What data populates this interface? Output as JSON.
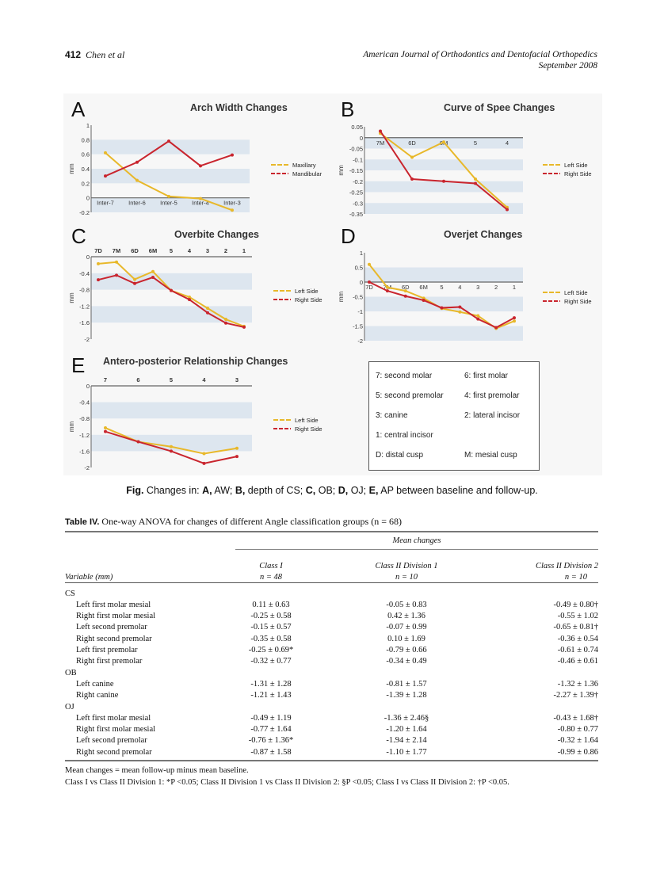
{
  "header": {
    "page_number": "412",
    "authors": "Chen et al",
    "journal": "American Journal of Orthodontics and Dentofacial Orthopedics",
    "date": "September 2008"
  },
  "colors": {
    "left": "#e8b82a",
    "right": "#c9252e",
    "band": "#dde6ef"
  },
  "chart_data": [
    {
      "panel": "A",
      "type": "line",
      "title": "Arch Width Changes",
      "ylabel": "mm",
      "categories": [
        "Inter-7",
        "Inter-6",
        "Inter-5",
        "Inter-4",
        "Inter-3"
      ],
      "ylim": [
        -0.2,
        1
      ],
      "yticks": [
        "1",
        "0.8",
        "0.6",
        "0.4",
        "0.2",
        "0",
        "-0.2"
      ],
      "tick_position": "bottom",
      "legend": "right",
      "series": [
        {
          "name": "Maxillary",
          "values": [
            0.62,
            0.24,
            0.02,
            -0.01,
            -0.17
          ]
        },
        {
          "name": "Mandibular",
          "values": [
            0.3,
            0.49,
            0.78,
            0.44,
            0.59
          ]
        }
      ]
    },
    {
      "panel": "B",
      "type": "line",
      "title": "Curve of Spee Changes",
      "ylabel": "mm",
      "categories": [
        "7M",
        "6D",
        "6M",
        "5",
        "4"
      ],
      "ylim": [
        -0.35,
        0.05
      ],
      "yticks": [
        "0.05",
        "0",
        "-0.05",
        "-0.1",
        "-0.15",
        "-0.2",
        "-0.25",
        "-0.3",
        "-0.35"
      ],
      "tick_position": "bottom",
      "legend": "right",
      "series": [
        {
          "name": "Left Side",
          "values": [
            0.02,
            -0.09,
            -0.02,
            -0.19,
            -0.32
          ]
        },
        {
          "name": "Right Side",
          "values": [
            0.03,
            -0.19,
            -0.2,
            -0.21,
            -0.33
          ]
        }
      ]
    },
    {
      "panel": "C",
      "type": "line",
      "title": "Overbite Changes",
      "ylabel": "mm",
      "categories": [
        "7D",
        "7M",
        "6D",
        "6M",
        "5",
        "4",
        "3",
        "2",
        "1"
      ],
      "ylim": [
        -2,
        0
      ],
      "yticks": [
        "0",
        "-0.4",
        "-0.8",
        "-1.2",
        "-1.6",
        "-2"
      ],
      "tick_position": "top",
      "legend": "right",
      "series": [
        {
          "name": "Left Side",
          "values": [
            -0.17,
            -0.13,
            -0.55,
            -0.36,
            -0.82,
            -0.98,
            -1.25,
            -1.52,
            -1.69
          ]
        },
        {
          "name": "Right Side",
          "values": [
            -0.56,
            -0.45,
            -0.65,
            -0.5,
            -0.82,
            -1.04,
            -1.36,
            -1.61,
            -1.71
          ]
        }
      ]
    },
    {
      "panel": "D",
      "type": "line",
      "title": "Overjet Changes",
      "ylabel": "mm",
      "categories": [
        "7D",
        "7M",
        "6D",
        "6M",
        "5",
        "4",
        "3",
        "2",
        "1"
      ],
      "ylim": [
        -2,
        1
      ],
      "yticks": [
        "1",
        "0.5",
        "0",
        "-0.5",
        "-1",
        "-1.5",
        "-2"
      ],
      "tick_position": "bottom",
      "legend": "right",
      "series": [
        {
          "name": "Left Side",
          "values": [
            0.6,
            -0.18,
            -0.3,
            -0.55,
            -0.9,
            -1.02,
            -1.15,
            -1.58,
            -1.33
          ]
        },
        {
          "name": "Right Side",
          "values": [
            0,
            -0.3,
            -0.48,
            -0.62,
            -0.88,
            -0.85,
            -1.26,
            -1.55,
            -1.22
          ]
        }
      ]
    },
    {
      "panel": "E",
      "type": "line",
      "title": "Antero-posterior Relationship Changes",
      "ylabel": "mm",
      "categories": [
        "7",
        "6",
        "5",
        "4",
        "3"
      ],
      "ylim": [
        -2,
        0
      ],
      "yticks": [
        "0",
        "-0.4",
        "-0.8",
        "-1.2",
        "-1.6",
        "-2"
      ],
      "tick_position": "top",
      "legend": "right",
      "series": [
        {
          "name": "Left Side",
          "values": [
            -1.03,
            -1.37,
            -1.49,
            -1.66,
            -1.53
          ]
        },
        {
          "name": "Right Side",
          "values": [
            -1.12,
            -1.37,
            -1.6,
            -1.9,
            -1.73
          ]
        }
      ]
    }
  ],
  "key": [
    "7: second molar",
    "6: first molar",
    "5: second premolar",
    "4: first premolar",
    "3: canine",
    "2: lateral incisor",
    "1: central incisor",
    "D: distal cusp",
    "M: mesial cusp"
  ],
  "caption": {
    "fig": "Fig.",
    "text0": " Changes in: ",
    "a": "A,",
    "ta": " AW; ",
    "b": "B,",
    "tb": " depth of CS; ",
    "c": "C,",
    "tc": " OB; ",
    "d": "D,",
    "td": " OJ; ",
    "e": "E,",
    "te": " AP between baseline and follow-up."
  },
  "table": {
    "label": "Table IV.",
    "title": " One-way ANOVA for changes of different Angle classification groups (n = 68)",
    "span_header": "Mean changes",
    "columns": [
      {
        "name": "Variable (mm)"
      },
      {
        "name": "Class I",
        "n": "n = 48"
      },
      {
        "name": "Class II Division 1",
        "n": "n = 10"
      },
      {
        "name": "Class II Division 2",
        "n": "n = 10"
      }
    ],
    "sections": [
      {
        "name": "CS",
        "rows": [
          [
            "Left first molar mesial",
            "0.11 ± 0.63",
            "-0.05 ± 0.83",
            "-0.49 ± 0.80†"
          ],
          [
            "Right first molar mesial",
            "-0.25 ± 0.58",
            "0.42 ± 1.36",
            "-0.55 ± 1.02"
          ],
          [
            "Left second premolar",
            "-0.15 ± 0.57",
            "-0.07 ± 0.99",
            "-0.65 ± 0.81†"
          ],
          [
            "Right second premolar",
            "-0.35 ± 0.58",
            "0.10 ± 1.69",
            "-0.36 ± 0.54"
          ],
          [
            "Left first premolar",
            "-0.25 ± 0.69*",
            "-0.79 ± 0.66",
            "-0.61 ± 0.74"
          ],
          [
            "Right first premolar",
            "-0.32 ± 0.77",
            "-0.34 ± 0.49",
            "-0.46 ± 0.61"
          ]
        ]
      },
      {
        "name": "OB",
        "rows": [
          [
            "Left canine",
            "-1.31 ± 1.28",
            "-0.81 ± 1.57",
            "-1.32 ± 1.36"
          ],
          [
            "Right canine",
            "-1.21 ± 1.43",
            "-1.39 ± 1.28",
            "-2.27 ± 1.39†"
          ]
        ]
      },
      {
        "name": "OJ",
        "rows": [
          [
            "Left first molar mesial",
            "-0.49 ± 1.19",
            "-1.36 ± 2.46§",
            "-0.43 ± 1.68†"
          ],
          [
            "Right first molar mesial",
            "-0.77 ± 1.64",
            "-1.20 ± 1.64",
            "-0.80 ± 0.77"
          ],
          [
            "Left second premolar",
            "-0.76 ± 1.36*",
            "-1.94 ± 2.14",
            "-0.32 ± 1.64"
          ],
          [
            "Right second premolar",
            "-0.87 ± 1.58",
            "-1.10 ± 1.77",
            "-0.99 ± 0.86"
          ]
        ]
      }
    ],
    "notes": [
      "Mean changes = mean follow-up minus mean baseline.",
      "Class I vs Class II Division 1: *P <0.05; Class II Division 1 vs Class II Division 2: §P <0.05; Class I vs Class II Division 2: †P <0.05."
    ]
  }
}
